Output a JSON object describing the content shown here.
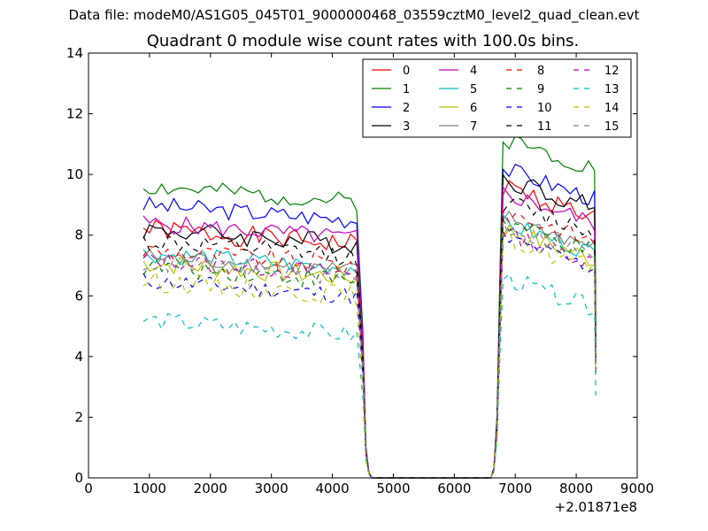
{
  "suptitle": "Data file: modeM0/AS1G05_045T01_9000000468_03559cztM0_level2_quad_clean.evt",
  "chart_data": {
    "type": "line",
    "title": "Quadrant 0 module wise count rates with 100.0s bins.",
    "xlabel": "",
    "ylabel": "",
    "x_offset_label": "+2.01871e8",
    "xlim": [
      0,
      9000
    ],
    "ylim": [
      0,
      14
    ],
    "xticks": [
      0,
      1000,
      2000,
      3000,
      4000,
      5000,
      6000,
      7000,
      8000,
      9000
    ],
    "yticks": [
      0,
      2,
      4,
      6,
      8,
      10,
      12,
      14
    ],
    "legend_position": "top-right",
    "legend_columns": 4,
    "grid": false,
    "segments": [
      {
        "x_start": 900,
        "x_end": 4400,
        "step": 100
      },
      {
        "x_start": 6800,
        "x_end": 8300,
        "step": 100
      }
    ],
    "gap": {
      "before_x": [
        4400,
        4500,
        4550,
        4600,
        4650
      ],
      "before_fraction": [
        1.0,
        0.55,
        0.12,
        0.02,
        0.0
      ],
      "zero_until": 6600,
      "after_x": [
        6600,
        6650,
        6700,
        6750,
        6800
      ],
      "after_fraction": [
        0.0,
        0.03,
        0.18,
        0.6,
        1.0
      ]
    },
    "end_drop": {
      "x": 8320,
      "fraction": 0.5
    },
    "series": [
      {
        "name": "0",
        "color": "#ff0000",
        "dash": "solid",
        "first_level": 7.7,
        "second_level": 8.6,
        "noise": 0.35,
        "seed": 1
      },
      {
        "name": "1",
        "color": "#008000",
        "dash": "solid",
        "first_level": 9.1,
        "second_level": 10.2,
        "noise": 0.3,
        "seed": 2
      },
      {
        "name": "2",
        "color": "#0000ff",
        "dash": "solid",
        "first_level": 8.5,
        "second_level": 9.2,
        "noise": 0.3,
        "seed": 3
      },
      {
        "name": "3",
        "color": "#000000",
        "dash": "solid",
        "first_level": 7.7,
        "second_level": 8.9,
        "noise": 0.35,
        "seed": 4
      },
      {
        "name": "4",
        "color": "#bf00bf",
        "dash": "solid",
        "first_level": 7.9,
        "second_level": 8.4,
        "noise": 0.3,
        "seed": 5
      },
      {
        "name": "5",
        "color": "#00bfbf",
        "dash": "solid",
        "first_level": 6.9,
        "second_level": 7.4,
        "noise": 0.3,
        "seed": 6
      },
      {
        "name": "6",
        "color": "#bfbf00",
        "dash": "solid",
        "first_level": 6.6,
        "second_level": 7.2,
        "noise": 0.35,
        "seed": 7
      },
      {
        "name": "7",
        "color": "#808080",
        "dash": "solid",
        "first_level": 6.8,
        "second_level": 7.6,
        "noise": 0.3,
        "seed": 8
      },
      {
        "name": "8",
        "color": "#ff0000",
        "dash": "dashed",
        "first_level": 7.0,
        "second_level": 7.8,
        "noise": 0.35,
        "seed": 9
      },
      {
        "name": "9",
        "color": "#008000",
        "dash": "dashed",
        "first_level": 6.5,
        "second_level": 7.4,
        "noise": 0.35,
        "seed": 10
      },
      {
        "name": "10",
        "color": "#0000ff",
        "dash": "dashed",
        "first_level": 6.0,
        "second_level": 6.9,
        "noise": 0.3,
        "seed": 11
      },
      {
        "name": "11",
        "color": "#000000",
        "dash": "dashed",
        "first_level": 7.3,
        "second_level": 8.1,
        "noise": 0.35,
        "seed": 12
      },
      {
        "name": "12",
        "color": "#bf00bf",
        "dash": "dashed",
        "first_level": 6.7,
        "second_level": 7.1,
        "noise": 0.3,
        "seed": 13
      },
      {
        "name": "13",
        "color": "#00bfbf",
        "dash": "dashed",
        "first_level": 4.7,
        "second_level": 5.6,
        "noise": 0.3,
        "seed": 14
      },
      {
        "name": "14",
        "color": "#bfbf00",
        "dash": "dashed",
        "first_level": 6.0,
        "second_level": 6.9,
        "noise": 0.35,
        "seed": 15
      },
      {
        "name": "15",
        "color": "#808080",
        "dash": "dashed",
        "first_level": 6.6,
        "second_level": 7.3,
        "noise": 0.3,
        "seed": 16
      }
    ]
  }
}
